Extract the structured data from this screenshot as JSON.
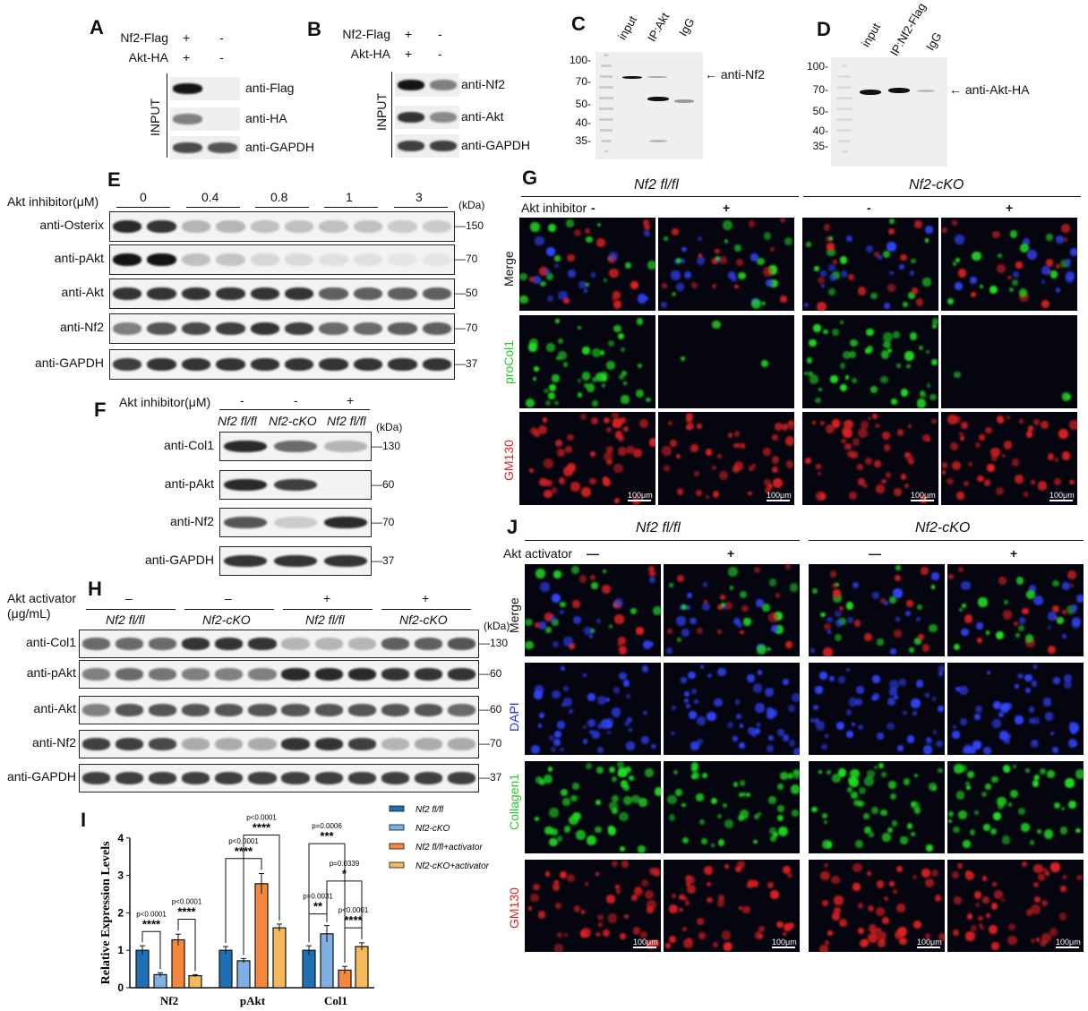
{
  "panels": {
    "A": "A",
    "B": "B",
    "C": "C",
    "D": "D",
    "E": "E",
    "F": "F",
    "G": "G",
    "H": "H",
    "I": "I",
    "J": "J"
  },
  "A": {
    "rows": [
      {
        "label": "Nf2-Flag",
        "signs": [
          "+",
          "-"
        ]
      },
      {
        "label": "Akt-HA",
        "signs": [
          "+",
          "-"
        ]
      }
    ],
    "side": "INPUT",
    "blots": [
      {
        "label": "anti-Flag",
        "lanes": [
          1.0,
          0
        ]
      },
      {
        "label": "anti-HA",
        "lanes": [
          0.5,
          0
        ]
      },
      {
        "label": "anti-GAPDH",
        "lanes": [
          0.75,
          0.7
        ]
      }
    ]
  },
  "B": {
    "rows": [
      {
        "label": "Nf2-Flag",
        "signs": [
          "+",
          "-"
        ]
      },
      {
        "label": "Akt-HA",
        "signs": [
          "+",
          "-"
        ]
      }
    ],
    "side": "INPUT",
    "blots": [
      {
        "label": "anti-Nf2",
        "lanes": [
          1.0,
          0.5
        ]
      },
      {
        "label": "anti-Akt",
        "lanes": [
          0.85,
          0.45
        ]
      },
      {
        "label": "anti-GAPDH",
        "lanes": [
          0.8,
          0.8
        ]
      }
    ]
  },
  "C": {
    "lanes": [
      "input",
      "IP:Akt",
      "IgG"
    ],
    "mw": [
      "100-",
      "70-",
      "50-",
      "40-",
      "35-"
    ],
    "annotation": "anti-Nf2"
  },
  "D": {
    "lanes": [
      "input",
      "IP:Nf2-Flag",
      "IgG"
    ],
    "mw": [
      "100-",
      "70-",
      "50-",
      "40-",
      "35-"
    ],
    "annotation": "anti-Akt-HA"
  },
  "E": {
    "treatment": "Akt inhibitor(μM)",
    "doses": [
      "0",
      "0.4",
      "0.8",
      "1",
      "3"
    ],
    "kda": "(kDa)",
    "blots": [
      {
        "label": "anti-Osterix",
        "mw": "150",
        "lanes": [
          0.9,
          0.85,
          0.25,
          0.25,
          0.2,
          0.2,
          0.2,
          0.2,
          0.15,
          0.15
        ]
      },
      {
        "label": "anti-pAkt",
        "mw": "70",
        "lanes": [
          1,
          1,
          0.2,
          0.18,
          0.1,
          0.08,
          0.05,
          0.05,
          0.03,
          0.03
        ]
      },
      {
        "label": "anti-Akt",
        "mw": "50",
        "lanes": [
          0.85,
          0.85,
          0.85,
          0.85,
          0.85,
          0.85,
          0.65,
          0.65,
          0.65,
          0.65
        ]
      },
      {
        "label": "anti-Nf2",
        "mw": "70",
        "lanes": [
          0.5,
          0.7,
          0.75,
          0.8,
          0.85,
          0.8,
          0.6,
          0.6,
          0.65,
          0.65
        ]
      },
      {
        "label": "anti-GAPDH",
        "mw": "37",
        "lanes": [
          0.8,
          0.85,
          0.85,
          0.85,
          0.85,
          0.85,
          0.85,
          0.85,
          0.85,
          0.85
        ]
      }
    ]
  },
  "F": {
    "treatment": "Akt inhibitor(μM)",
    "signs": [
      "-",
      "-",
      "+"
    ],
    "groups": [
      "Nf2 fl/fl",
      "Nf2-cKO",
      "Nf2 fl/fl"
    ],
    "kda": "(kDa)",
    "blots": [
      {
        "label": "anti-Col1",
        "mw": "130",
        "lanes": [
          0.9,
          0.6,
          0.25
        ]
      },
      {
        "label": "anti-pAkt",
        "mw": "60",
        "lanes": [
          0.9,
          0.8,
          0
        ]
      },
      {
        "label": "anti-Nf2",
        "mw": "70",
        "lanes": [
          0.7,
          0.15,
          0.9
        ]
      },
      {
        "label": "anti-GAPDH",
        "mw": "37",
        "lanes": [
          0.85,
          0.85,
          0.85
        ]
      }
    ]
  },
  "G": {
    "groups": [
      "Nf2 fl/fl",
      "Nf2-cKO"
    ],
    "treatment": "Akt inhibitor",
    "signs": [
      "-",
      "+",
      "-",
      "+"
    ],
    "rows": [
      {
        "label": "Merge",
        "color": "#111111"
      },
      {
        "label": "proCol1",
        "color": "#22cc22"
      },
      {
        "label": "GM130",
        "color": "#dd2222"
      }
    ],
    "scale": "100μm"
  },
  "H": {
    "treatment": "Akt activator (μg/mL)",
    "signs": [
      "–",
      "–",
      "+",
      "+"
    ],
    "groups": [
      "Nf2 fl/fl",
      "Nf2-cKO",
      "Nf2 fl/fl",
      "Nf2-cKO"
    ],
    "kda": "(kDa)",
    "blots": [
      {
        "label": "anti-Col1",
        "mw": "130",
        "lanes": [
          0.6,
          0.6,
          0.6,
          0.85,
          0.85,
          0.85,
          0.25,
          0.25,
          0.25,
          0.65,
          0.65,
          0.7
        ]
      },
      {
        "label": "anti-pAkt",
        "mw": "60",
        "lanes": [
          0.5,
          0.6,
          0.55,
          0.5,
          0.5,
          0.5,
          0.9,
          0.9,
          0.9,
          0.85,
          0.85,
          0.85
        ]
      },
      {
        "label": "anti-Akt",
        "mw": "60",
        "lanes": [
          0.5,
          0.7,
          0.7,
          0.7,
          0.7,
          0.7,
          0.7,
          0.7,
          0.7,
          0.7,
          0.7,
          0.6
        ]
      },
      {
        "label": "anti-Nf2",
        "mw": "70",
        "lanes": [
          0.8,
          0.8,
          0.75,
          0.3,
          0.3,
          0.3,
          0.85,
          0.85,
          0.8,
          0.25,
          0.3,
          0.3
        ]
      },
      {
        "label": "anti-GAPDH",
        "mw": "37",
        "lanes": [
          0.8,
          0.8,
          0.8,
          0.8,
          0.8,
          0.8,
          0.8,
          0.8,
          0.8,
          0.8,
          0.8,
          0.8
        ]
      }
    ]
  },
  "J": {
    "groups": [
      "Nf2 fl/fl",
      "Nf2-cKO"
    ],
    "treatment": "Akt activator",
    "signs": [
      "—",
      "+",
      "—",
      "+"
    ],
    "rows": [
      {
        "label": "Merge",
        "color": "#111111"
      },
      {
        "label": "DAPI",
        "color": "#2233dd"
      },
      {
        "label": "Collagen1",
        "color": "#22cc22"
      },
      {
        "label": "GM130",
        "color": "#dd2222"
      }
    ],
    "scale": "100μm"
  },
  "chart_data": {
    "type": "bar",
    "ylabel": "Relative Expression Levels",
    "ylim": [
      0,
      4
    ],
    "yticks": [
      "0",
      "1",
      "2",
      "3",
      "4"
    ],
    "categories": [
      "Nf2",
      "pAkt",
      "Col1"
    ],
    "series": [
      {
        "name": "Nf2 fl/fl",
        "color": "#1f6fb5",
        "values": [
          1.0,
          1.0,
          1.0
        ],
        "errors": [
          0.12,
          0.1,
          0.12
        ]
      },
      {
        "name": "Nf2-cKO",
        "color": "#7fb0e3",
        "values": [
          0.35,
          0.72,
          1.44
        ],
        "errors": [
          0.05,
          0.06,
          0.22
        ]
      },
      {
        "name": "Nf2 fl/fl+activator",
        "color": "#f5873f",
        "values": [
          1.28,
          2.78,
          0.47
        ],
        "errors": [
          0.15,
          0.27,
          0.1
        ]
      },
      {
        "name": "Nf2-cKO+activator",
        "color": "#f5b85a",
        "values": [
          0.32,
          1.6,
          1.1
        ],
        "errors": [
          0.03,
          0.1,
          0.1
        ]
      }
    ],
    "legend_position": "right",
    "comparisons": [
      {
        "category": 0,
        "bars": [
          0,
          1
        ],
        "p": "p<0.0001",
        "stars": "****"
      },
      {
        "category": 0,
        "bars": [
          2,
          3
        ],
        "p": "p<0.0001",
        "stars": "****"
      },
      {
        "category": 1,
        "bars": [
          0,
          2
        ],
        "p": "p<0.0001",
        "stars": "****"
      },
      {
        "category": 1,
        "bars": [
          1,
          3
        ],
        "p": "p<0.0001",
        "stars": "****"
      },
      {
        "category": 2,
        "bars": [
          0,
          1
        ],
        "p": "p=0.0031",
        "stars": "**"
      },
      {
        "category": 2,
        "bars": [
          0,
          2
        ],
        "p": "p=0.0006",
        "stars": "***"
      },
      {
        "category": 2,
        "bars": [
          1,
          3
        ],
        "p": "p=0.0339",
        "stars": "*"
      },
      {
        "category": 2,
        "bars": [
          2,
          3
        ],
        "p": "p<0.0001",
        "stars": "****"
      }
    ]
  }
}
